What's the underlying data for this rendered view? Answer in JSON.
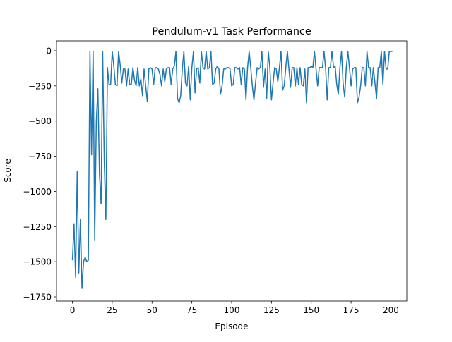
{
  "chart_data": {
    "type": "line",
    "title": "Pendulum-v1 Task Performance",
    "xlabel": "Episode",
    "ylabel": "Score",
    "xlim": [
      -10,
      210
    ],
    "ylim": [
      -1780,
      70
    ],
    "xticks": [
      0,
      25,
      50,
      75,
      100,
      125,
      150,
      175,
      200
    ],
    "yticks": [
      0,
      -250,
      -500,
      -750,
      -1000,
      -1250,
      -1500,
      -1750
    ],
    "xtick_labels": [
      "0",
      "25",
      "50",
      "75",
      "100",
      "125",
      "150",
      "175",
      "200"
    ],
    "ytick_labels": [
      "0",
      "−250",
      "−500",
      "−750",
      "−1000",
      "−1250",
      "−1500",
      "−1750"
    ],
    "grid": false,
    "legend": false,
    "line_color": "#1f77b4",
    "series": [
      {
        "values": [
          -1490,
          -1230,
          -1610,
          -860,
          -1580,
          -1200,
          -1690,
          -1500,
          -1470,
          -1500,
          -1490,
          -5,
          -740,
          -5,
          -1350,
          -500,
          -270,
          -880,
          -1090,
          -5,
          -790,
          -1200,
          -120,
          -240,
          -240,
          -5,
          -110,
          -240,
          -250,
          -5,
          -100,
          -230,
          -130,
          -130,
          -250,
          -130,
          -240,
          -240,
          -120,
          -210,
          -250,
          -120,
          -250,
          -200,
          -320,
          -130,
          -250,
          -360,
          -130,
          -120,
          -130,
          -240,
          -120,
          -120,
          -130,
          -170,
          -250,
          -130,
          -220,
          -130,
          -120,
          -120,
          -240,
          -130,
          -110,
          -5,
          -340,
          -370,
          -320,
          -130,
          -5,
          -230,
          -250,
          -110,
          -350,
          -120,
          -5,
          -300,
          -130,
          -120,
          -230,
          -5,
          -120,
          -130,
          -5,
          -130,
          -120,
          -5,
          -240,
          -230,
          -130,
          -110,
          -130,
          -310,
          -250,
          -130,
          -130,
          -120,
          -120,
          -130,
          -250,
          -240,
          -120,
          -120,
          -130,
          -120,
          -240,
          -120,
          -130,
          -350,
          -120,
          -5,
          -120,
          -250,
          -350,
          -230,
          -120,
          -130,
          -120,
          -5,
          -260,
          -130,
          -340,
          -5,
          -120,
          -350,
          -230,
          -120,
          -130,
          -220,
          -120,
          -5,
          -280,
          -250,
          -120,
          -5,
          -130,
          -260,
          -120,
          -120,
          -250,
          -120,
          -240,
          -120,
          -240,
          -250,
          -130,
          -370,
          -120,
          -120,
          -110,
          -120,
          -5,
          -130,
          -250,
          -120,
          -120,
          -120,
          -5,
          -120,
          -350,
          -120,
          -120,
          -5,
          -120,
          -110,
          -240,
          -310,
          -120,
          -5,
          -230,
          -330,
          -120,
          -5,
          -120,
          -250,
          -130,
          -120,
          -120,
          -370,
          -330,
          -250,
          -120,
          -120,
          -250,
          -5,
          -120,
          -120,
          -250,
          -120,
          -230,
          -340,
          -120,
          -120,
          -5,
          -240,
          -5,
          -130,
          -130,
          -5,
          -5,
          -5
        ]
      }
    ]
  }
}
